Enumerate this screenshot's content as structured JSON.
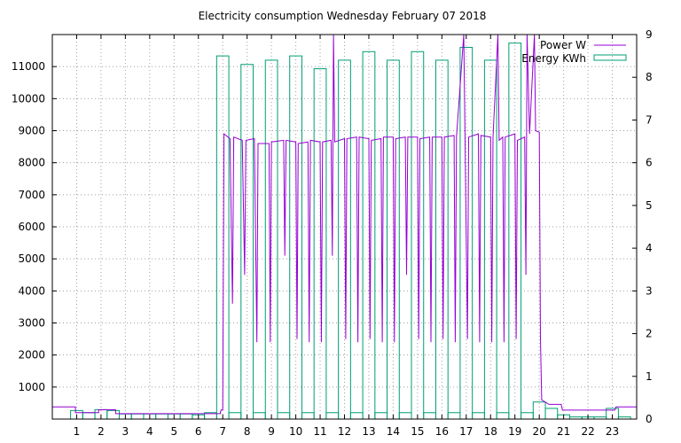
{
  "chart_data": {
    "type": "line",
    "title": "Electricity consumption Wednesday February 07 2018",
    "xlabel": "",
    "ylabel": "",
    "y2label": "",
    "xlim": [
      0,
      24
    ],
    "ylim": [
      0,
      12000
    ],
    "y2lim": [
      0,
      9
    ],
    "grid": "on",
    "legend_position": "top-right",
    "x_ticks": [
      1,
      2,
      3,
      4,
      5,
      6,
      7,
      8,
      9,
      10,
      11,
      12,
      13,
      14,
      15,
      16,
      17,
      18,
      19,
      20,
      21,
      22,
      23
    ],
    "y_ticks": [
      1000,
      2000,
      3000,
      4000,
      5000,
      6000,
      7000,
      8000,
      9000,
      10000,
      11000
    ],
    "y2_ticks": [
      0,
      1,
      2,
      3,
      4,
      5,
      6,
      7,
      8,
      9
    ],
    "colors": {
      "power": "#9400d3",
      "energy": "#009e73",
      "grid": "#a0a0a0",
      "axis": "#000000"
    },
    "series": [
      {
        "name": "Power W",
        "axis": "y1",
        "style": "line",
        "points": [
          [
            0,
            380
          ],
          [
            0.95,
            380
          ],
          [
            0.95,
            200
          ],
          [
            1.9,
            200
          ],
          [
            1.9,
            290
          ],
          [
            2.6,
            290
          ],
          [
            2.6,
            170
          ],
          [
            6.9,
            170
          ],
          [
            6.9,
            220
          ],
          [
            6.95,
            290
          ],
          [
            7.0,
            290
          ],
          [
            7.05,
            8900
          ],
          [
            7.3,
            8750
          ],
          [
            7.4,
            3600
          ],
          [
            7.45,
            8800
          ],
          [
            7.8,
            8700
          ],
          [
            7.9,
            4500
          ],
          [
            7.95,
            8700
          ],
          [
            8.3,
            8750
          ],
          [
            8.4,
            2400
          ],
          [
            8.45,
            8600
          ],
          [
            8.9,
            8600
          ],
          [
            8.95,
            2400
          ],
          [
            9.0,
            8650
          ],
          [
            9.5,
            8700
          ],
          [
            9.55,
            5100
          ],
          [
            9.6,
            8700
          ],
          [
            10.0,
            8650
          ],
          [
            10.05,
            2500
          ],
          [
            10.1,
            8600
          ],
          [
            10.5,
            8650
          ],
          [
            10.55,
            2400
          ],
          [
            10.6,
            8700
          ],
          [
            11.0,
            8650
          ],
          [
            11.05,
            2400
          ],
          [
            11.1,
            8650
          ],
          [
            11.45,
            8700
          ],
          [
            11.5,
            5100
          ],
          [
            11.55,
            12000
          ],
          [
            11.6,
            8650
          ],
          [
            12.0,
            8750
          ],
          [
            12.05,
            2500
          ],
          [
            12.1,
            8750
          ],
          [
            12.5,
            8800
          ],
          [
            12.55,
            2400
          ],
          [
            12.6,
            8800
          ],
          [
            13.0,
            8750
          ],
          [
            13.05,
            2500
          ],
          [
            13.1,
            8700
          ],
          [
            13.5,
            8750
          ],
          [
            13.55,
            2400
          ],
          [
            13.6,
            8800
          ],
          [
            14.0,
            8800
          ],
          [
            14.05,
            2400
          ],
          [
            14.1,
            8750
          ],
          [
            14.5,
            8800
          ],
          [
            14.55,
            4500
          ],
          [
            14.6,
            8800
          ],
          [
            15.0,
            8800
          ],
          [
            15.05,
            2500
          ],
          [
            15.1,
            8750
          ],
          [
            15.5,
            8800
          ],
          [
            15.55,
            2400
          ],
          [
            15.6,
            8800
          ],
          [
            16.0,
            8800
          ],
          [
            16.05,
            2500
          ],
          [
            16.1,
            8800
          ],
          [
            16.5,
            8850
          ],
          [
            16.55,
            2400
          ],
          [
            16.6,
            8800
          ],
          [
            16.9,
            12000
          ],
          [
            16.95,
            8850
          ],
          [
            17.05,
            2500
          ],
          [
            17.1,
            8800
          ],
          [
            17.5,
            8900
          ],
          [
            17.55,
            2400
          ],
          [
            17.6,
            8850
          ],
          [
            18.0,
            8800
          ],
          [
            18.05,
            2400
          ],
          [
            18.1,
            8800
          ],
          [
            18.3,
            12000
          ],
          [
            18.35,
            8700
          ],
          [
            18.5,
            8800
          ],
          [
            18.55,
            2400
          ],
          [
            18.6,
            8800
          ],
          [
            19.0,
            8900
          ],
          [
            19.05,
            2500
          ],
          [
            19.1,
            8700
          ],
          [
            19.4,
            8800
          ],
          [
            19.45,
            4500
          ],
          [
            19.5,
            12000
          ],
          [
            19.6,
            8900
          ],
          [
            19.8,
            12000
          ],
          [
            19.85,
            9000
          ],
          [
            20.0,
            8950
          ],
          [
            20.05,
            2500
          ],
          [
            20.1,
            600
          ],
          [
            20.4,
            460
          ],
          [
            20.9,
            460
          ],
          [
            20.95,
            280
          ],
          [
            23.1,
            280
          ],
          [
            23.15,
            380
          ],
          [
            24,
            380
          ]
        ]
      },
      {
        "name": "Energy KWh",
        "axis": "y2",
        "style": "boxes",
        "box_width": 0.5,
        "bars": [
          [
            1,
            0.2
          ],
          [
            1.5,
            0.15
          ],
          [
            2,
            0.22
          ],
          [
            2.5,
            0.2
          ],
          [
            3,
            0.12
          ],
          [
            3.5,
            0.12
          ],
          [
            4,
            0.12
          ],
          [
            4.5,
            0.12
          ],
          [
            5,
            0.12
          ],
          [
            5.5,
            0.12
          ],
          [
            6,
            0.1
          ],
          [
            6.5,
            0.15
          ],
          [
            7,
            8.5
          ],
          [
            7.5,
            0.15
          ],
          [
            8,
            8.3
          ],
          [
            8.5,
            0.15
          ],
          [
            9,
            8.4
          ],
          [
            9.5,
            0.15
          ],
          [
            10,
            8.5
          ],
          [
            10.5,
            0.15
          ],
          [
            11,
            8.2
          ],
          [
            11.5,
            0.15
          ],
          [
            12,
            8.4
          ],
          [
            12.5,
            0.15
          ],
          [
            13,
            8.6
          ],
          [
            13.5,
            0.15
          ],
          [
            14,
            8.4
          ],
          [
            14.5,
            0.15
          ],
          [
            15,
            8.6
          ],
          [
            15.5,
            0.15
          ],
          [
            16,
            8.4
          ],
          [
            16.5,
            0.15
          ],
          [
            17,
            8.7
          ],
          [
            17.5,
            0.15
          ],
          [
            18,
            8.4
          ],
          [
            18.5,
            0.15
          ],
          [
            19,
            8.8
          ],
          [
            19.5,
            0.15
          ],
          [
            20,
            0.4
          ],
          [
            20.5,
            0.25
          ],
          [
            21,
            0.1
          ],
          [
            21.5,
            0.05
          ],
          [
            22,
            0.05
          ],
          [
            22.5,
            0.05
          ],
          [
            23,
            0.25
          ],
          [
            23.5,
            0.05
          ]
        ]
      }
    ]
  }
}
